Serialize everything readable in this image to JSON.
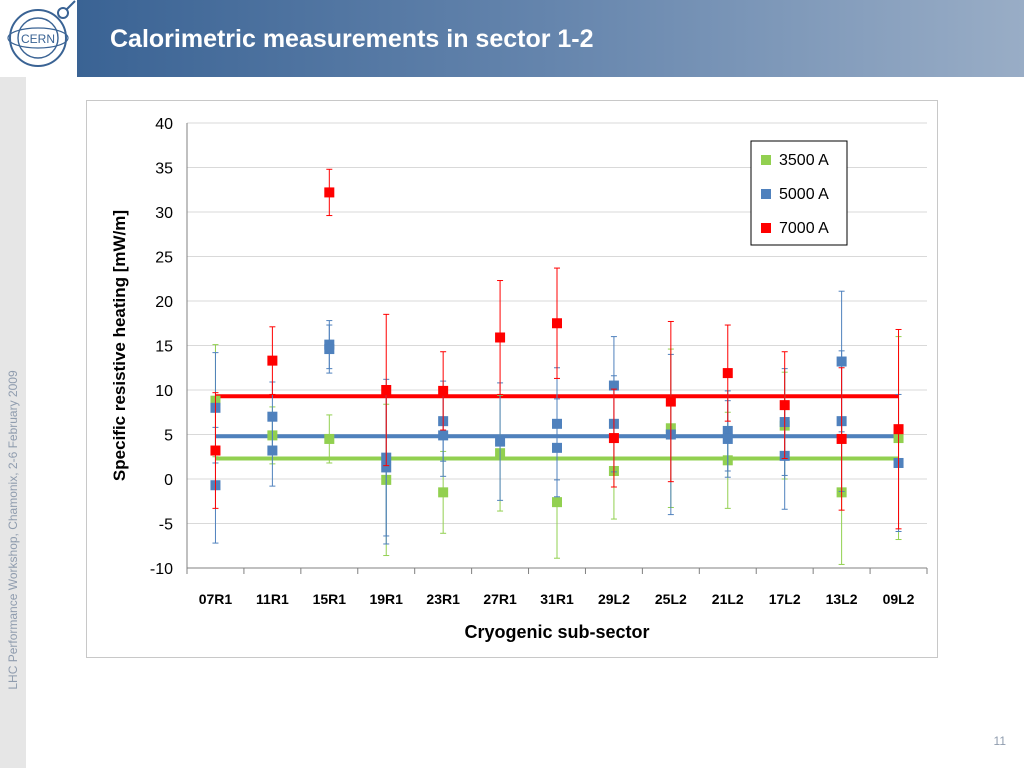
{
  "slide": {
    "title": "Calorimetric measurements in sector 1-2",
    "footer": "LHC Performance Workshop, Chamonix, 2-6 February 2009",
    "page_number": "11",
    "logo_text": "CERN"
  },
  "colors": {
    "header_start": "#3a6394",
    "header_end": "#99adc6",
    "series_3500": "#92d050",
    "series_5000": "#4f81bd",
    "series_7000": "#ff0000"
  },
  "chart_data": {
    "type": "scatter",
    "title": "",
    "xlabel": "Cryogenic sub-sector",
    "ylabel": "Specific resistive heating [mW/m]",
    "categories": [
      "07R1",
      "11R1",
      "15R1",
      "19R1",
      "23R1",
      "27R1",
      "31R1",
      "29L2",
      "25L2",
      "21L2",
      "17L2",
      "13L2",
      "09L2"
    ],
    "ylim": [
      -10,
      40
    ],
    "yticks": [
      -10,
      -5,
      0,
      5,
      10,
      15,
      20,
      25,
      30,
      35,
      40
    ],
    "grid": true,
    "legend_position": "top-right",
    "series": [
      {
        "name": "3500 A",
        "color": "#92d050",
        "average": 2.3,
        "points": [
          {
            "x": 0,
            "values": [
              8.8
            ],
            "err": [
              6.3
            ]
          },
          {
            "x": 1,
            "values": [
              4.9
            ],
            "err": [
              3.2
            ]
          },
          {
            "x": 2,
            "values": [
              4.5
            ],
            "err": [
              2.7
            ]
          },
          {
            "x": 3,
            "values": [
              -0.1
            ],
            "err": [
              8.5
            ]
          },
          {
            "x": 4,
            "values": [
              -1.5
            ],
            "err": [
              4.6
            ]
          },
          {
            "x": 5,
            "values": [
              2.9
            ],
            "err": [
              6.5
            ]
          },
          {
            "x": 6,
            "values": [
              -2.6
            ],
            "err": [
              6.3
            ]
          },
          {
            "x": 7,
            "values": [
              0.9
            ],
            "err": [
              5.4
            ]
          },
          {
            "x": 8,
            "values": [
              5.7
            ],
            "err": [
              8.9
            ]
          },
          {
            "x": 9,
            "values": [
              2.1
            ],
            "err": [
              5.4
            ]
          },
          {
            "x": 10,
            "values": [
              6.0
            ],
            "err": [
              6.0
            ]
          },
          {
            "x": 11,
            "values": [
              -1.5
            ],
            "err": [
              8.1
            ]
          },
          {
            "x": 12,
            "values": [
              4.6
            ],
            "err": [
              11.4
            ]
          }
        ]
      },
      {
        "name": "5000 A",
        "color": "#4f81bd",
        "average": 4.8,
        "points": [
          {
            "x": 0,
            "values": [
              8.0,
              -0.7
            ],
            "err": [
              6.2,
              6.5
            ]
          },
          {
            "x": 1,
            "values": [
              7.0,
              3.2
            ],
            "err": [
              3.9,
              4.0
            ]
          },
          {
            "x": 2,
            "values": [
              15.1,
              14.6
            ],
            "err": [
              2.7,
              2.7
            ]
          },
          {
            "x": 3,
            "values": [
              2.4,
              1.3
            ],
            "err": [
              8.8,
              8.6
            ]
          },
          {
            "x": 4,
            "values": [
              6.5,
              4.9
            ],
            "err": [
              4.5,
              4.6
            ]
          },
          {
            "x": 5,
            "values": [
              4.2
            ],
            "err": [
              6.6
            ]
          },
          {
            "x": 6,
            "values": [
              6.2,
              3.5
            ],
            "err": [
              6.3,
              5.5
            ]
          },
          {
            "x": 7,
            "values": [
              10.5,
              6.2
            ],
            "err": [
              5.5,
              5.4
            ]
          },
          {
            "x": 8,
            "values": [
              5.0
            ],
            "err": [
              9.0
            ]
          },
          {
            "x": 9,
            "values": [
              5.4,
              4.5
            ],
            "err": [
              4.5,
              4.3
            ]
          },
          {
            "x": 10,
            "values": [
              6.4,
              2.6
            ],
            "err": [
              6.0,
              6.0
            ]
          },
          {
            "x": 11,
            "values": [
              13.2,
              6.5
            ],
            "err": [
              7.9,
              7.9
            ]
          },
          {
            "x": 12,
            "values": [
              1.8
            ],
            "err": [
              7.7
            ]
          }
        ]
      },
      {
        "name": "7000 A",
        "color": "#ff0000",
        "average": 9.3,
        "points": [
          {
            "x": 0,
            "values": [
              3.2
            ],
            "err": [
              6.5
            ]
          },
          {
            "x": 1,
            "values": [
              13.3
            ],
            "err": [
              3.8
            ]
          },
          {
            "x": 2,
            "values": [
              32.2
            ],
            "err": [
              2.6
            ]
          },
          {
            "x": 3,
            "values": [
              10.0
            ],
            "err": [
              8.5
            ]
          },
          {
            "x": 4,
            "values": [
              9.9
            ],
            "err": [
              4.4
            ]
          },
          {
            "x": 5,
            "values": [
              15.9
            ],
            "err": [
              6.4
            ]
          },
          {
            "x": 6,
            "values": [
              17.5
            ],
            "err": [
              6.2
            ]
          },
          {
            "x": 7,
            "values": [
              4.6
            ],
            "err": [
              5.5
            ]
          },
          {
            "x": 8,
            "values": [
              8.7
            ],
            "err": [
              9.0
            ]
          },
          {
            "x": 9,
            "values": [
              11.9
            ],
            "err": [
              5.4
            ]
          },
          {
            "x": 10,
            "values": [
              8.3
            ],
            "err": [
              6.0
            ]
          },
          {
            "x": 11,
            "values": [
              4.5
            ],
            "err": [
              8.0
            ]
          },
          {
            "x": 12,
            "values": [
              5.6
            ],
            "err": [
              11.2
            ]
          }
        ]
      }
    ]
  }
}
